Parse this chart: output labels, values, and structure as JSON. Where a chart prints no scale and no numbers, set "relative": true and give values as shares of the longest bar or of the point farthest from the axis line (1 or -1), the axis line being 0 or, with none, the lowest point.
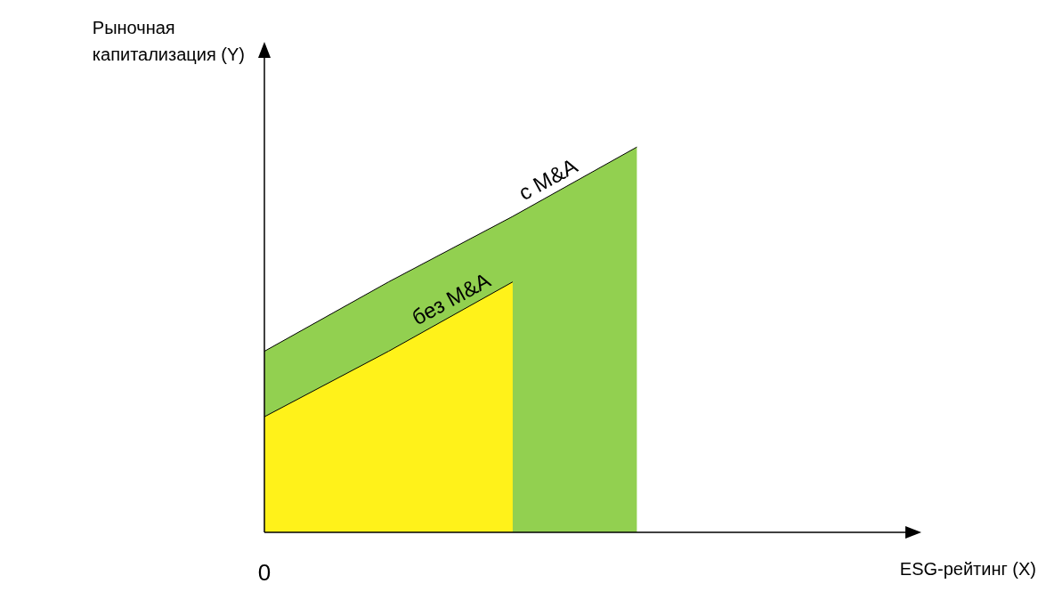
{
  "chart_data": {
    "type": "area",
    "relative": true,
    "ylabel": "Рыночная\nкапитализация (Y)",
    "annotations": [
      "0",
      "ESG-рейтинг (X)"
    ],
    "categories": [
      null,
      null,
      null,
      null
    ],
    "series": [
      {
        "name": "с M&A",
        "color": "#92d050",
        "values": [
          0.47,
          0.65,
          0.82,
          1
        ]
      },
      {
        "name": "без M&A",
        "color": "#fff21a",
        "values": [
          0.3,
          0.47,
          0.65,
          null
        ]
      }
    ]
  }
}
